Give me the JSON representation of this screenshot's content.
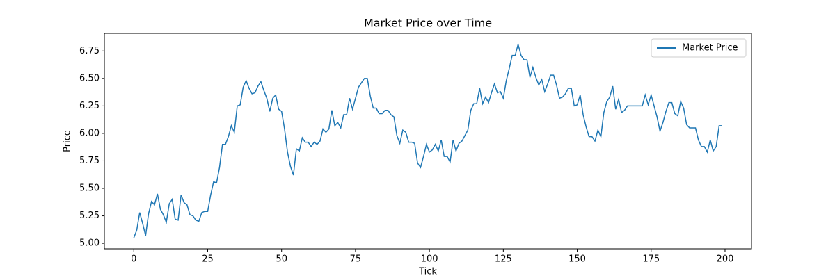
{
  "chart_data": {
    "type": "line",
    "title": "Market Price over Time",
    "x_label": "Tick",
    "y_label": "Price",
    "x": [
      0,
      1,
      2,
      3,
      4,
      5,
      6,
      7,
      8,
      9,
      10,
      11,
      12,
      13,
      14,
      15,
      16,
      17,
      18,
      19,
      20,
      21,
      22,
      23,
      24,
      25,
      26,
      27,
      28,
      29,
      30,
      31,
      32,
      33,
      34,
      35,
      36,
      37,
      38,
      39,
      40,
      41,
      42,
      43,
      44,
      45,
      46,
      47,
      48,
      49,
      50,
      51,
      52,
      53,
      54,
      55,
      56,
      57,
      58,
      59,
      60,
      61,
      62,
      63,
      64,
      65,
      66,
      67,
      68,
      69,
      70,
      71,
      72,
      73,
      74,
      75,
      76,
      77,
      78,
      79,
      80,
      81,
      82,
      83,
      84,
      85,
      86,
      87,
      88,
      89,
      90,
      91,
      92,
      93,
      94,
      95,
      96,
      97,
      98,
      99,
      100,
      101,
      102,
      103,
      104,
      105,
      106,
      107,
      108,
      109,
      110,
      111,
      112,
      113,
      114,
      115,
      116,
      117,
      118,
      119,
      120,
      121,
      122,
      123,
      124,
      125,
      126,
      127,
      128,
      129,
      130,
      131,
      132,
      133,
      134,
      135,
      136,
      137,
      138,
      139,
      140,
      141,
      142,
      143,
      144,
      145,
      146,
      147,
      148,
      149,
      150,
      151,
      152,
      153,
      154,
      155,
      156,
      157,
      158,
      159,
      160,
      161,
      162,
      163,
      164,
      165,
      166,
      167,
      168,
      169,
      170,
      171,
      172,
      173,
      174,
      175,
      176,
      177,
      178,
      179,
      180,
      181,
      182,
      183,
      184,
      185,
      186,
      187,
      188,
      189,
      190,
      191,
      192,
      193,
      194,
      195,
      196,
      197,
      198,
      199
    ],
    "series": [
      {
        "name": "Market Price",
        "color": "#1f77b4",
        "values": [
          5.05,
          5.12,
          5.28,
          5.18,
          5.07,
          5.27,
          5.38,
          5.35,
          5.45,
          5.31,
          5.26,
          5.19,
          5.36,
          5.4,
          5.22,
          5.21,
          5.44,
          5.37,
          5.35,
          5.26,
          5.25,
          5.21,
          5.2,
          5.28,
          5.29,
          5.29,
          5.44,
          5.56,
          5.55,
          5.69,
          5.9,
          5.9,
          5.97,
          6.07,
          6.01,
          6.25,
          6.26,
          6.42,
          6.48,
          6.41,
          6.36,
          6.37,
          6.43,
          6.47,
          6.39,
          6.32,
          6.2,
          6.32,
          6.35,
          6.22,
          6.2,
          6.04,
          5.83,
          5.7,
          5.62,
          5.86,
          5.84,
          5.96,
          5.92,
          5.92,
          5.88,
          5.92,
          5.9,
          5.93,
          6.04,
          6.01,
          6.04,
          6.21,
          6.07,
          6.1,
          6.05,
          6.17,
          6.17,
          6.32,
          6.22,
          6.32,
          6.42,
          6.46,
          6.5,
          6.5,
          6.34,
          6.23,
          6.23,
          6.18,
          6.18,
          6.21,
          6.21,
          6.17,
          6.15,
          5.98,
          5.91,
          6.03,
          6.01,
          5.92,
          5.92,
          5.91,
          5.73,
          5.69,
          5.79,
          5.9,
          5.83,
          5.85,
          5.9,
          5.84,
          5.94,
          5.79,
          5.79,
          5.74,
          5.94,
          5.84,
          5.91,
          5.93,
          5.98,
          6.03,
          6.21,
          6.27,
          6.27,
          6.41,
          6.27,
          6.33,
          6.28,
          6.37,
          6.45,
          6.37,
          6.38,
          6.32,
          6.48,
          6.59,
          6.71,
          6.71,
          6.81,
          6.71,
          6.67,
          6.67,
          6.51,
          6.6,
          6.51,
          6.44,
          6.49,
          6.38,
          6.45,
          6.53,
          6.53,
          6.44,
          6.32,
          6.33,
          6.36,
          6.41,
          6.41,
          6.25,
          6.26,
          6.35,
          6.17,
          6.06,
          5.97,
          5.97,
          5.93,
          6.03,
          5.97,
          6.19,
          6.29,
          6.33,
          6.43,
          6.22,
          6.31,
          6.19,
          6.21,
          6.25,
          6.25,
          6.25,
          6.25,
          6.25,
          6.25,
          6.35,
          6.26,
          6.35,
          6.25,
          6.15,
          6.02,
          6.1,
          6.2,
          6.28,
          6.28,
          6.18,
          6.16,
          6.29,
          6.23,
          6.08,
          6.05,
          6.05,
          6.05,
          5.94,
          5.88,
          5.88,
          5.83,
          5.94,
          5.84,
          5.88,
          6.07,
          6.07
        ]
      }
    ],
    "xlim": [
      -9.95,
      208.95
    ],
    "xticks": [
      0,
      25,
      50,
      75,
      100,
      125,
      150,
      175,
      200
    ],
    "ylim": [
      4.95,
      6.91
    ],
    "yticks": [
      {
        "value": 5,
        "label": "5.00"
      },
      {
        "value": 5.25,
        "label": "5.25"
      },
      {
        "value": 5.5,
        "label": "5.50"
      },
      {
        "value": 5.75,
        "label": "5.75"
      },
      {
        "value": 6,
        "label": "6.00"
      },
      {
        "value": 6.25,
        "label": "6.25"
      },
      {
        "value": 6.5,
        "label": "6.50"
      },
      {
        "value": 6.75,
        "label": "6.75"
      }
    ],
    "grid": false,
    "legend": "upper right"
  }
}
